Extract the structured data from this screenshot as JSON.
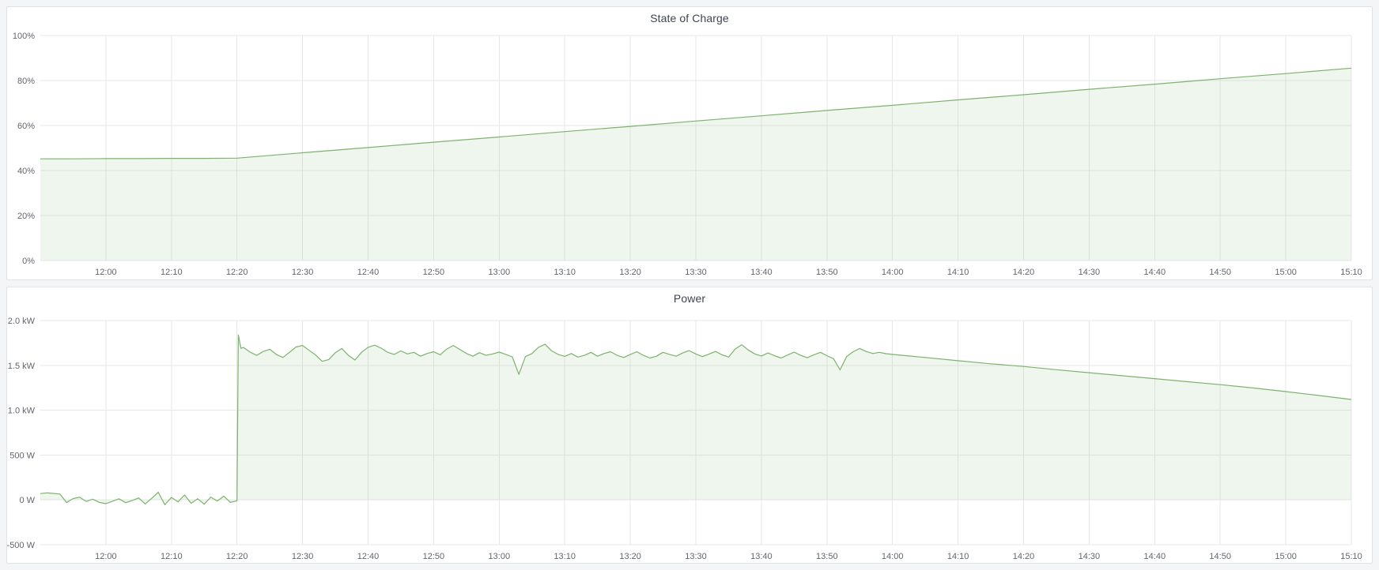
{
  "dashboard": {
    "background_color": "#f4f5f6",
    "panel_background": "#ffffff",
    "panel_border_color": "#dfe2e6",
    "title_color": "#3f4450",
    "axis_text_color": "#61656d",
    "grid_color": "#e6e7e9",
    "series_green": "#7eb26d"
  },
  "chart_data": [
    {
      "type": "area",
      "title": "State of Charge",
      "xlabel": "",
      "ylabel": "",
      "unit": "%",
      "grid": true,
      "legend": "none",
      "x_range_minutes": [
        0,
        200
      ],
      "ylim": [
        0,
        100
      ],
      "x_ticks": [
        {
          "minute": 10,
          "label": "12:00"
        },
        {
          "minute": 20,
          "label": "12:10"
        },
        {
          "minute": 30,
          "label": "12:20"
        },
        {
          "minute": 40,
          "label": "12:30"
        },
        {
          "minute": 50,
          "label": "12:40"
        },
        {
          "minute": 60,
          "label": "12:50"
        },
        {
          "minute": 70,
          "label": "13:00"
        },
        {
          "minute": 80,
          "label": "13:10"
        },
        {
          "minute": 90,
          "label": "13:20"
        },
        {
          "minute": 100,
          "label": "13:30"
        },
        {
          "minute": 110,
          "label": "13:40"
        },
        {
          "minute": 120,
          "label": "13:50"
        },
        {
          "minute": 130,
          "label": "14:00"
        },
        {
          "minute": 140,
          "label": "14:10"
        },
        {
          "minute": 150,
          "label": "14:20"
        },
        {
          "minute": 160,
          "label": "14:30"
        },
        {
          "minute": 170,
          "label": "14:40"
        },
        {
          "minute": 180,
          "label": "14:50"
        },
        {
          "minute": 190,
          "label": "15:00"
        },
        {
          "minute": 200,
          "label": "15:10"
        }
      ],
      "y_ticks": [
        {
          "value": 0,
          "label": "0%"
        },
        {
          "value": 20,
          "label": "20%"
        },
        {
          "value": 40,
          "label": "40%"
        },
        {
          "value": 60,
          "label": "60%"
        },
        {
          "value": 80,
          "label": "80%"
        },
        {
          "value": 100,
          "label": "100%"
        }
      ],
      "series": [
        {
          "name": "State of Charge",
          "color": "#7eb26d",
          "fill": "rgba(126,178,109,0.12)",
          "points": [
            [
              0,
              45.2
            ],
            [
              5,
              45.2
            ],
            [
              10,
              45.3
            ],
            [
              15,
              45.3
            ],
            [
              20,
              45.4
            ],
            [
              25,
              45.4
            ],
            [
              30,
              45.5
            ],
            [
              40,
              47.9
            ],
            [
              50,
              50.2
            ],
            [
              60,
              52.6
            ],
            [
              70,
              54.9
            ],
            [
              80,
              57.3
            ],
            [
              90,
              59.6
            ],
            [
              100,
              62.0
            ],
            [
              110,
              64.3
            ],
            [
              120,
              66.7
            ],
            [
              130,
              69.0
            ],
            [
              140,
              71.4
            ],
            [
              150,
              73.7
            ],
            [
              160,
              76.1
            ],
            [
              170,
              78.4
            ],
            [
              180,
              80.8
            ],
            [
              190,
              83.1
            ],
            [
              200,
              85.5
            ]
          ]
        }
      ]
    },
    {
      "type": "area",
      "title": "Power",
      "xlabel": "",
      "ylabel": "",
      "unit": "W",
      "grid": true,
      "legend": "none",
      "x_range_minutes": [
        0,
        200
      ],
      "ylim": [
        -500,
        2000
      ],
      "x_ticks": [
        {
          "minute": 10,
          "label": "12:00"
        },
        {
          "minute": 20,
          "label": "12:10"
        },
        {
          "minute": 30,
          "label": "12:20"
        },
        {
          "minute": 40,
          "label": "12:30"
        },
        {
          "minute": 50,
          "label": "12:40"
        },
        {
          "minute": 60,
          "label": "12:50"
        },
        {
          "minute": 70,
          "label": "13:00"
        },
        {
          "minute": 80,
          "label": "13:10"
        },
        {
          "minute": 90,
          "label": "13:20"
        },
        {
          "minute": 100,
          "label": "13:30"
        },
        {
          "minute": 110,
          "label": "13:40"
        },
        {
          "minute": 120,
          "label": "13:50"
        },
        {
          "minute": 130,
          "label": "14:00"
        },
        {
          "minute": 140,
          "label": "14:10"
        },
        {
          "minute": 150,
          "label": "14:20"
        },
        {
          "minute": 160,
          "label": "14:30"
        },
        {
          "minute": 170,
          "label": "14:40"
        },
        {
          "minute": 180,
          "label": "14:50"
        },
        {
          "minute": 190,
          "label": "15:00"
        },
        {
          "minute": 200,
          "label": "15:10"
        }
      ],
      "y_ticks": [
        {
          "value": -500,
          "label": "-500 W"
        },
        {
          "value": 0,
          "label": "0 W"
        },
        {
          "value": 500,
          "label": "500 W"
        },
        {
          "value": 1000,
          "label": "1.0 kW"
        },
        {
          "value": 1500,
          "label": "1.5 kW"
        },
        {
          "value": 2000,
          "label": "2.0 kW"
        }
      ],
      "series": [
        {
          "name": "Power",
          "color": "#7eb26d",
          "fill": "rgba(126,178,109,0.12)",
          "points": [
            [
              0,
              70
            ],
            [
              1,
              78
            ],
            [
              2,
              72
            ],
            [
              3,
              65
            ],
            [
              4,
              -30
            ],
            [
              5,
              15
            ],
            [
              6,
              30
            ],
            [
              7,
              -18
            ],
            [
              8,
              8
            ],
            [
              9,
              -28
            ],
            [
              10,
              -42
            ],
            [
              11,
              -15
            ],
            [
              12,
              12
            ],
            [
              13,
              -32
            ],
            [
              14,
              -8
            ],
            [
              15,
              22
            ],
            [
              16,
              -45
            ],
            [
              17,
              18
            ],
            [
              18,
              85
            ],
            [
              19,
              -55
            ],
            [
              20,
              28
            ],
            [
              21,
              -22
            ],
            [
              22,
              55
            ],
            [
              23,
              -38
            ],
            [
              24,
              12
            ],
            [
              25,
              -48
            ],
            [
              26,
              32
            ],
            [
              27,
              -12
            ],
            [
              28,
              42
            ],
            [
              29,
              -28
            ],
            [
              30,
              -10
            ],
            [
              30.2,
              1840
            ],
            [
              30.6,
              1690
            ],
            [
              31,
              1700
            ],
            [
              32,
              1648
            ],
            [
              33,
              1612
            ],
            [
              34,
              1655
            ],
            [
              35,
              1680
            ],
            [
              36,
              1622
            ],
            [
              37,
              1588
            ],
            [
              38,
              1645
            ],
            [
              39,
              1705
            ],
            [
              40,
              1722
            ],
            [
              41,
              1668
            ],
            [
              42,
              1615
            ],
            [
              43,
              1545
            ],
            [
              44,
              1565
            ],
            [
              45,
              1642
            ],
            [
              46,
              1688
            ],
            [
              47,
              1612
            ],
            [
              48,
              1560
            ],
            [
              49,
              1645
            ],
            [
              50,
              1702
            ],
            [
              51,
              1725
            ],
            [
              52,
              1692
            ],
            [
              53,
              1645
            ],
            [
              54,
              1622
            ],
            [
              55,
              1662
            ],
            [
              56,
              1628
            ],
            [
              57,
              1645
            ],
            [
              58,
              1602
            ],
            [
              59,
              1632
            ],
            [
              60,
              1652
            ],
            [
              61,
              1618
            ],
            [
              62,
              1682
            ],
            [
              63,
              1722
            ],
            [
              64,
              1678
            ],
            [
              65,
              1632
            ],
            [
              66,
              1602
            ],
            [
              67,
              1642
            ],
            [
              68,
              1612
            ],
            [
              69,
              1628
            ],
            [
              70,
              1648
            ],
            [
              71,
              1622
            ],
            [
              72,
              1595
            ],
            [
              73,
              1400
            ],
            [
              74,
              1598
            ],
            [
              75,
              1632
            ],
            [
              76,
              1702
            ],
            [
              77,
              1735
            ],
            [
              78,
              1662
            ],
            [
              79,
              1622
            ],
            [
              80,
              1600
            ],
            [
              81,
              1632
            ],
            [
              82,
              1592
            ],
            [
              83,
              1612
            ],
            [
              84,
              1645
            ],
            [
              85,
              1602
            ],
            [
              86,
              1632
            ],
            [
              87,
              1652
            ],
            [
              88,
              1612
            ],
            [
              89,
              1588
            ],
            [
              90,
              1622
            ],
            [
              91,
              1652
            ],
            [
              92,
              1612
            ],
            [
              93,
              1582
            ],
            [
              94,
              1602
            ],
            [
              95,
              1645
            ],
            [
              96,
              1622
            ],
            [
              97,
              1602
            ],
            [
              98,
              1638
            ],
            [
              99,
              1665
            ],
            [
              100,
              1628
            ],
            [
              101,
              1598
            ],
            [
              102,
              1625
            ],
            [
              103,
              1655
            ],
            [
              104,
              1618
            ],
            [
              105,
              1592
            ],
            [
              106,
              1682
            ],
            [
              107,
              1730
            ],
            [
              108,
              1672
            ],
            [
              109,
              1628
            ],
            [
              110,
              1605
            ],
            [
              111,
              1638
            ],
            [
              112,
              1608
            ],
            [
              113,
              1582
            ],
            [
              114,
              1615
            ],
            [
              115,
              1648
            ],
            [
              116,
              1612
            ],
            [
              117,
              1585
            ],
            [
              118,
              1618
            ],
            [
              119,
              1645
            ],
            [
              120,
              1608
            ],
            [
              121,
              1575
            ],
            [
              122,
              1450
            ],
            [
              123,
              1598
            ],
            [
              124,
              1652
            ],
            [
              125,
              1688
            ],
            [
              126,
              1655
            ],
            [
              127,
              1632
            ],
            [
              128,
              1645
            ],
            [
              129,
              1630
            ],
            [
              130,
              1622
            ],
            [
              135,
              1588
            ],
            [
              140,
              1552
            ],
            [
              145,
              1518
            ],
            [
              150,
              1488
            ],
            [
              155,
              1452
            ],
            [
              160,
              1418
            ],
            [
              165,
              1385
            ],
            [
              170,
              1352
            ],
            [
              175,
              1318
            ],
            [
              180,
              1285
            ],
            [
              185,
              1248
            ],
            [
              190,
              1208
            ],
            [
              195,
              1165
            ],
            [
              200,
              1120
            ]
          ]
        }
      ]
    }
  ]
}
